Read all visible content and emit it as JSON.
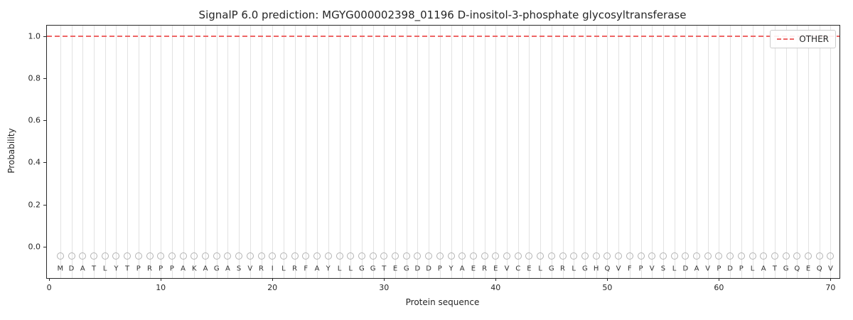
{
  "figure": {
    "title": "SignalP 6.0 prediction: MGYG000002398_01196 D-inositol-3-phosphate glycosyltransferase",
    "xlabel": "Protein sequence",
    "ylabel": "Probability"
  },
  "chart_data": {
    "type": "line",
    "title": "SignalP 6.0 prediction: MGYG000002398_01196 D-inositol-3-phosphate glycosyltransferase",
    "xlabel": "Protein sequence",
    "ylabel": "Probability",
    "xlim": [
      -0.2,
      70.8
    ],
    "ylim": [
      -0.15,
      1.05
    ],
    "x_ticks": [
      0,
      10,
      20,
      30,
      40,
      50,
      60,
      70
    ],
    "y_ticks": [
      0.0,
      0.2,
      0.4,
      0.6,
      0.8,
      1.0
    ],
    "grid": "vertical gridline at every residue position, no horizontal gridlines",
    "legend_position": "upper right",
    "sequence": [
      "M",
      "D",
      "A",
      "T",
      "L",
      "Y",
      "T",
      "P",
      "R",
      "P",
      "P",
      "A",
      "K",
      "A",
      "G",
      "A",
      "S",
      "V",
      "R",
      "I",
      "L",
      "R",
      "F",
      "A",
      "Y",
      "L",
      "L",
      "G",
      "G",
      "T",
      "E",
      "G",
      "D",
      "D",
      "P",
      "Y",
      "A",
      "E",
      "R",
      "E",
      "V",
      "C",
      "E",
      "L",
      "G",
      "R",
      "L",
      "G",
      "H",
      "Q",
      "V",
      "F",
      "P",
      "V",
      "S",
      "L",
      "D",
      "A",
      "V",
      "P",
      "D",
      "P",
      "L",
      "A",
      "T",
      "G",
      "Q",
      "E",
      "Q",
      "V"
    ],
    "series": [
      {
        "name": "OTHER",
        "style": "dashed",
        "color": "#ee6666",
        "n_points": 70,
        "constant_value": 1.0,
        "description": "flat dashed line at probability 1.0 across all 70 residue positions"
      }
    ],
    "markers": {
      "shape": "open-circle",
      "color": "#b3b3b3",
      "y_value": -0.045,
      "description": "one open gray circle above each residue letter"
    },
    "sequence_label_y": -0.105
  },
  "colors": {
    "other_line": "#ee6666",
    "gridline": "#e2e2e2",
    "axis": "#2a2a2a",
    "marker": "#b3b3b3",
    "text": "#262626"
  }
}
